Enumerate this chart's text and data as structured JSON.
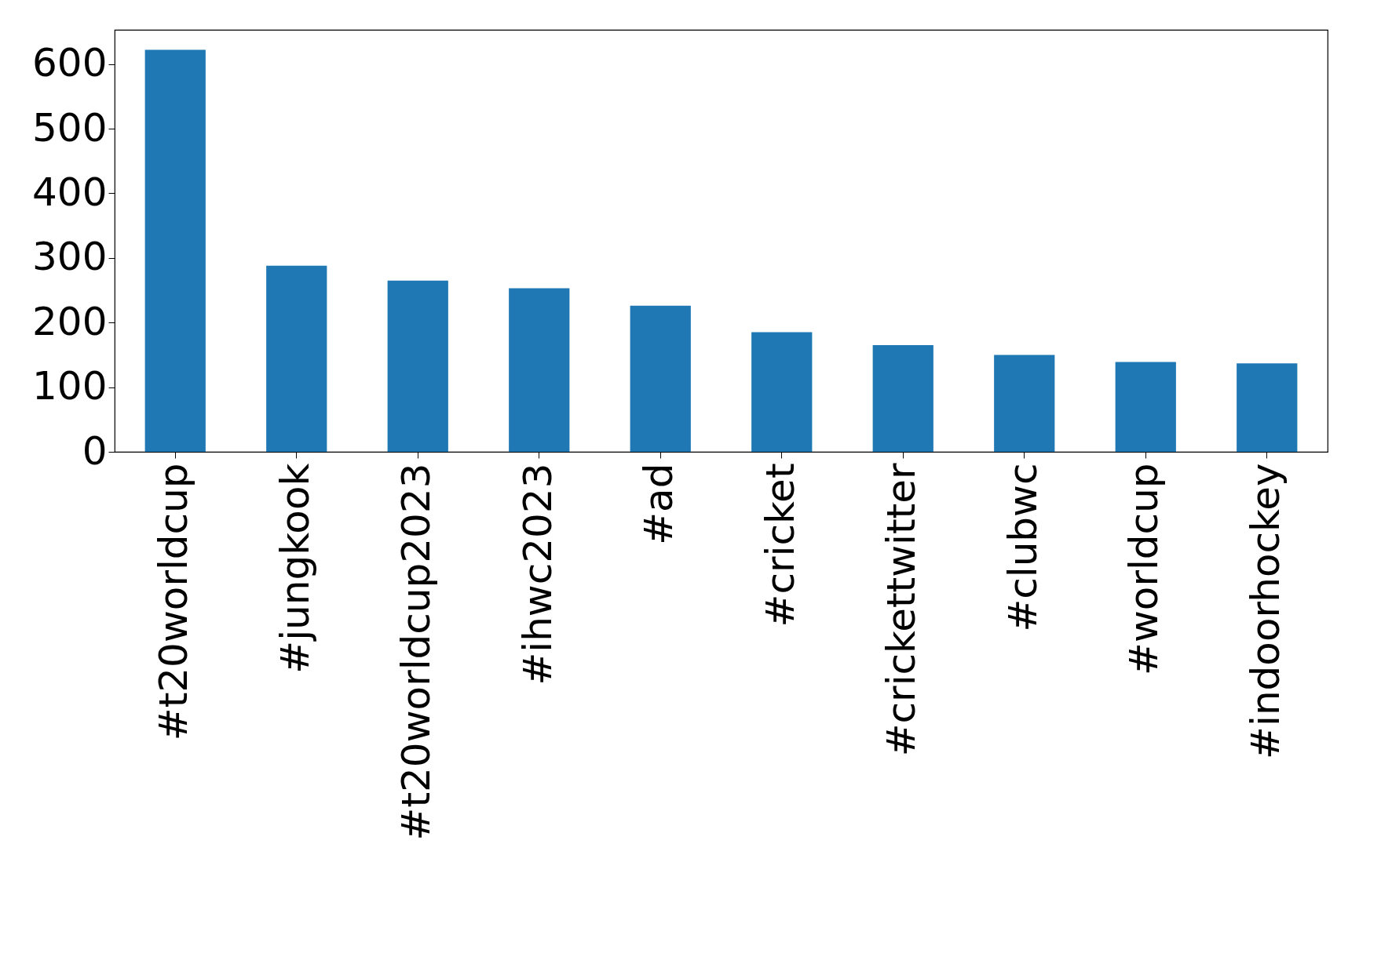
{
  "chart_data": {
    "type": "bar",
    "categories": [
      "#t20worldcup",
      "#jungkook",
      "#t20worldcup2023",
      "#ihwc2023",
      "#ad",
      "#cricket",
      "#crickettwitter",
      "#clubwc",
      "#worldcup",
      "#indoorhockey"
    ],
    "values": [
      622,
      288,
      265,
      253,
      226,
      185,
      165,
      150,
      139,
      137
    ],
    "color": "#1f77b4",
    "ylim": [
      0,
      653
    ],
    "yticks": [
      0,
      100,
      200,
      300,
      400,
      500,
      600
    ],
    "grid": false
  }
}
